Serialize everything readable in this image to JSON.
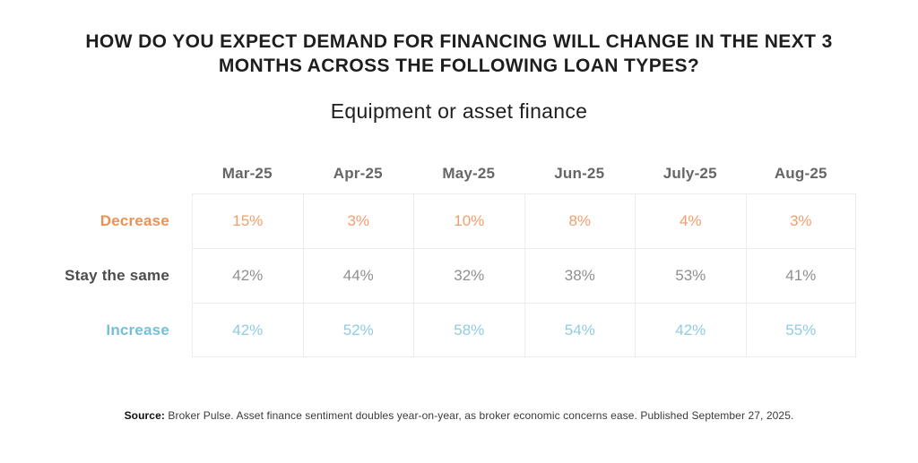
{
  "title": "HOW DO YOU EXPECT DEMAND FOR FINANCING WILL CHANGE IN THE NEXT 3 MONTHS ACROSS THE FOLLOWING LOAN TYPES?",
  "subtitle": "Equipment or asset finance",
  "source": {
    "label": "Source:",
    "text": " Broker Pulse. Asset finance sentiment doubles year-on-year, as broker economic concerns ease. Published September 27, 2025."
  },
  "colors": {
    "title-text": "#1E1E1E",
    "header-text": "#666666",
    "grid-line": "#ECECEC",
    "decrease-label": "#EF9051",
    "decrease-value": "#F29D6C",
    "same-label": "#4D4D4D",
    "same-value": "#8F8F8F",
    "increase-label": "#76BFD8",
    "increase-value": "#90CCDF"
  },
  "chart_data": {
    "type": "table",
    "title": "HOW DO YOU EXPECT DEMAND FOR FINANCING WILL CHANGE IN THE NEXT 3 MONTHS ACROSS THE FOLLOWING LOAN TYPES?",
    "subtitle": "Equipment or asset finance",
    "categories": [
      "Mar-25",
      "Apr-25",
      "May-25",
      "Jun-25",
      "July-25",
      "Aug-25"
    ],
    "series": [
      {
        "name": "Decrease",
        "values": [
          "15%",
          "3%",
          "10%",
          "8%",
          "4%",
          "3%"
        ]
      },
      {
        "name": "Stay the same",
        "values": [
          "42%",
          "44%",
          "32%",
          "38%",
          "53%",
          "41%"
        ]
      },
      {
        "name": "Increase",
        "values": [
          "42%",
          "52%",
          "58%",
          "54%",
          "42%",
          "55%"
        ]
      }
    ],
    "layout_hints": {
      "grid": "light-gray cell borders on data columns only",
      "row_label_alignment": "right",
      "value_alignment": "center"
    }
  }
}
